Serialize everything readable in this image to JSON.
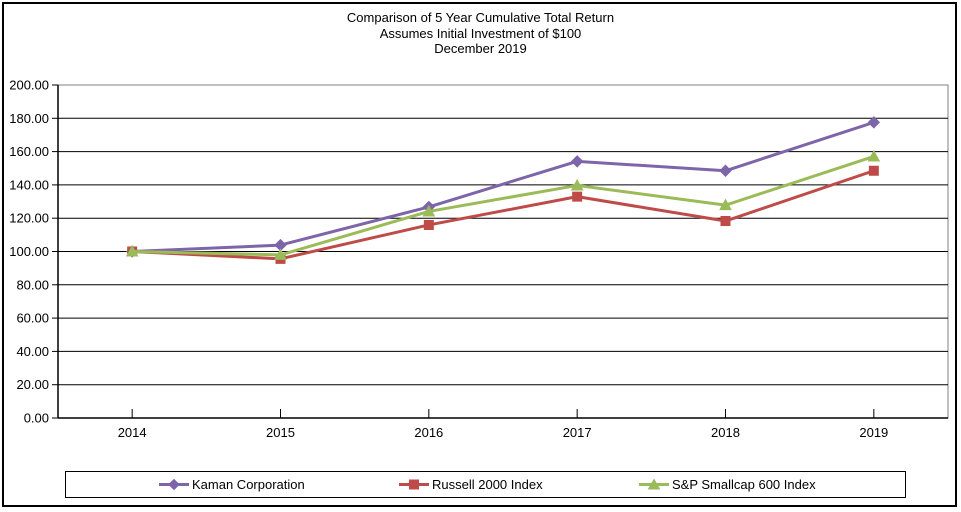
{
  "title": {
    "line1": "Comparison of 5 Year Cumulative Total Return",
    "line2": "Assumes Initial Investment of $100",
    "line3": "December 2019"
  },
  "chart_data": {
    "type": "line",
    "categories": [
      "2014",
      "2015",
      "2016",
      "2017",
      "2018",
      "2019"
    ],
    "series": [
      {
        "name": "Kaman Corporation",
        "color": "#7D65A9",
        "marker": "diamond",
        "values": [
          100.0,
          103.85,
          126.77,
          154.14,
          148.49,
          177.55
        ]
      },
      {
        "name": "Russell 2000 Index",
        "color": "#BE4B48",
        "marker": "square",
        "values": [
          100.0,
          95.59,
          115.95,
          132.94,
          118.3,
          148.49
        ]
      },
      {
        "name": "S&P Smallcap 600 Index",
        "color": "#9BBB59",
        "marker": "triangle",
        "values": [
          100.0,
          97.96,
          124.06,
          139.67,
          127.84,
          157.09
        ]
      }
    ],
    "y_axis": {
      "min": 0,
      "max": 200,
      "step": 20,
      "tick_labels": [
        "0.00",
        "20.00",
        "40.00",
        "60.00",
        "80.00",
        "100.00",
        "120.00",
        "140.00",
        "160.00",
        "180.00",
        "200.00"
      ]
    },
    "grid": "horizontal-on",
    "legend_position": "bottom"
  },
  "colors": {
    "axis": "#000000",
    "gridline": "#000000",
    "plot_border": "#808080",
    "background": "#FFFFFF",
    "text": "#000000"
  }
}
